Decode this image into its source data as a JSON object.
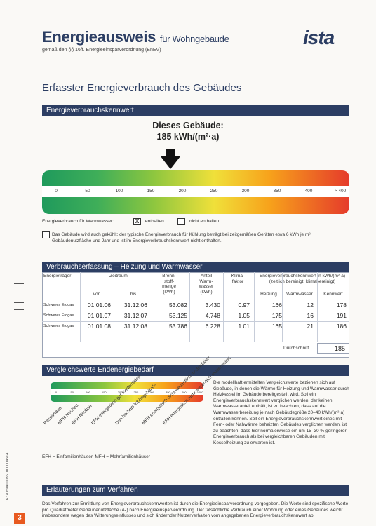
{
  "header": {
    "title": "Energieausweis",
    "title_suffix": "für Wohngebäude",
    "subtitle": "gemäß den §§ 16ff. Energieeinsparverordnung (EnEV)",
    "logo": "ista"
  },
  "section_title": "Erfasster Energieverbrauch des Gebäudes",
  "kennwert": {
    "bar_label": "Energieverbrauchskennwert",
    "dieses_label": "Dieses Gebäude:",
    "dieses_value": "185 kWh/(m²·a)",
    "indicator_value": 185,
    "ticks": [
      "0",
      "50",
      "100",
      "150",
      "200",
      "250",
      "300",
      "350",
      "400",
      "> 400"
    ],
    "warmwasser_label": "Energieverbrauch für Warmwasser:",
    "enthalten": "enthalten",
    "nicht_enthalten": "nicht enthalten",
    "enthalten_checked": "X",
    "kuehlung_text": "Das Gebäude wird auch gekühlt; der typische Energieverbrauch für Kühlung beträgt bei zeitgemäßen Geräten etwa 6 kWh je m² Gebäudenutzfläche und Jahr und ist im Energieverbrauchskennwert nicht enthalten."
  },
  "verbrauch": {
    "bar_label": "Verbrauchserfassung – Heizung und Warmwasser",
    "headers": {
      "energietraeger": "Energieträger",
      "zeitraum": "Zeitraum",
      "von": "von",
      "bis": "bis",
      "brennstoff": "Brenn- stoff- menge (kWh)",
      "anteil": "Anteil Warm- wasser (kWh)",
      "klima": "Klima- faktor",
      "ekw": "Energieverbrauchskennwert in kWh/(m²·a) (zeitlich bereinigt, klimabereinigt)",
      "heizung": "Heizung",
      "warmwasser": "Warmwasser",
      "kennwert": "Kennwert"
    },
    "rows": [
      {
        "traeger": "Schweres Erdgas",
        "von": "01.01.06",
        "bis": "31.12.06",
        "menge": "53.082",
        "anteil": "3.430",
        "klima": "0.97",
        "heizung": "166",
        "warmwasser": "12",
        "kennwert": "178"
      },
      {
        "traeger": "Schweres Erdgas",
        "von": "01.01.07",
        "bis": "31.12.07",
        "menge": "53.125",
        "anteil": "4.748",
        "klima": "1.05",
        "heizung": "175",
        "warmwasser": "16",
        "kennwert": "191"
      },
      {
        "traeger": "Schweres Erdgas",
        "von": "01.01.08",
        "bis": "31.12.08",
        "menge": "53.786",
        "anteil": "6.228",
        "klima": "1.01",
        "heizung": "165",
        "warmwasser": "21",
        "kennwert": "186"
      }
    ],
    "durchschnitt_label": "Durchschnitt",
    "durchschnitt_value": "185"
  },
  "vergleich": {
    "bar_label": "Vergleichswerte Endenergiebedarf",
    "scale_ticks": [
      "0",
      "50",
      "100",
      "150",
      "200",
      "250",
      "300",
      "350",
      "400",
      ">400"
    ],
    "labels": [
      "Passivhaus",
      "MFH Neubau",
      "EFH Neubau",
      "EFH energetisch gut modernisiert",
      "Durchschnitt Wohngebäude",
      "MFH energetisch nicht wesentlich modernisiert",
      "EFH energetisch nicht wesentlich modernisiert"
    ],
    "legend_note": "EFH = Einfamilienhäuser, MFH = Mehrfamilienhäuser",
    "explanation": "Die modellhaft ermittelten Vergleichswerte beziehen sich auf Gebäude, in denen die Wärme für Heizung und Warmwasser durch Heizkessel im Gebäude bereitgestellt wird. Soll ein Energieverbrauchskennwert verglichen werden, der keinen Warmwasseranteil enthält, ist zu beachten, dass auf die Warmwasserbereitung je nach Gebäudegröße 20–40 kWh/(m²·a) entfallen können. Soll ein Energieverbrauchskennwert eines mit Fern- oder Nahwärme beheizten Gebäudes verglichen werden, ist zu beachten, dass hier normalerweise ein um 15–30 % geringerer Energieverbrauch als bei vergleichbaren Gebäuden mit Kesselheizung zu erwarten ist."
  },
  "erlaeuterungen": {
    "bar_label": "Erläuterungen zum Verfahren",
    "text": "Das Verfahren zur Ermittlung von Energieverbrauchskennwerten ist durch die Energieeinsparverordnung vorgegeben. Die Werte sind spezifische Werte pro Quadratmeter Gebäudenutzfläche (Aₙ) nach Energieeinsparverordnung. Der tatsächliche Verbrauch einer Wohnung oder eines Gebäudes weicht insbesondere wegen des Witterungseinflusses und sich ändernder Nutzerverhalten vom angegebenen Energieverbrauchskennwert ab."
  },
  "footer": {
    "page_number": "3",
    "side_code": "16770694000351000004614"
  }
}
